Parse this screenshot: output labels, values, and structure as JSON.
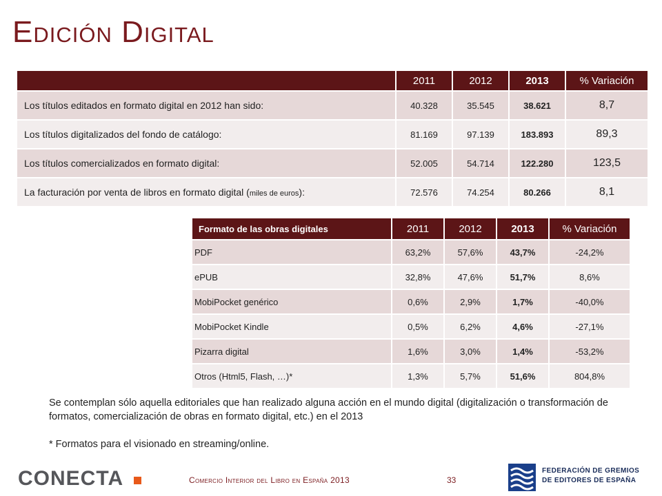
{
  "title": "Edición Digital",
  "table1": {
    "headers": [
      "",
      "2011",
      "2012",
      "2013",
      "% Variación"
    ],
    "rows": [
      {
        "label": "Los títulos editados en formato digital en 2012 han sido:",
        "label_small": "",
        "label_end": "",
        "v2011": "40.328",
        "v2012": "35.545",
        "v2013": "38.621",
        "var": "8,7"
      },
      {
        "label": "Los títulos digitalizados del fondo de catálogo:",
        "label_small": "",
        "label_end": "",
        "v2011": "81.169",
        "v2012": "97.139",
        "v2013": "183.893",
        "var": "89,3"
      },
      {
        "label": "Los títulos comercializados en formato digital:",
        "label_small": "",
        "label_end": "",
        "v2011": "52.005",
        "v2012": "54.714",
        "v2013": "122.280",
        "var": "123,5"
      },
      {
        "label": "La facturación por venta de libros en formato digital (",
        "label_small": "miles de euros",
        "label_end": "):",
        "v2011": "72.576",
        "v2012": "74.254",
        "v2013": "80.266",
        "var": "8,1"
      }
    ]
  },
  "table2": {
    "headers": [
      "Formato de las obras digitales",
      "2011",
      "2012",
      "2013",
      "% Variación"
    ],
    "rows": [
      {
        "label": "PDF",
        "v2011": "63,2%",
        "v2012": "57,6%",
        "v2013": "43,7%",
        "var": "-24,2%"
      },
      {
        "label": "ePUB",
        "v2011": "32,8%",
        "v2012": "47,6%",
        "v2013": "51,7%",
        "var": "8,6%"
      },
      {
        "label": "MobiPocket genérico",
        "v2011": "0,6%",
        "v2012": "2,9%",
        "v2013": "1,7%",
        "var": "-40,0%"
      },
      {
        "label": "MobiPocket Kindle",
        "v2011": "0,5%",
        "v2012": "6,2%",
        "v2013": "4,6%",
        "var": "-27,1%"
      },
      {
        "label": "Pizarra digital",
        "v2011": "1,6%",
        "v2012": "3,0%",
        "v2013": "1,4%",
        "var": "-53,2%"
      },
      {
        "label": "Otros (Html5, Flash, …)*",
        "v2011": "1,3%",
        "v2012": "5,7%",
        "v2013": "51,6%",
        "var": "804,8%"
      }
    ]
  },
  "notes": {
    "line1": "Se contemplan sólo aquella editoriales que han realizado alguna acción en el mundo digital (digitalización o transformación de formatos, comercialización de obras en formato digital, etc.) en el 2013",
    "line2": "* Formatos para el visionado en streaming/online."
  },
  "footer": {
    "logo_text": "CONECTA",
    "subtitle": "Comercio Interior del Libro en España 2013",
    "page_number": "33",
    "federation_line1": "FEDERACIÓN DE GREMIOS",
    "federation_line2": "DE EDITORES DE ESPAÑA"
  },
  "colors": {
    "accent": "#5c1517",
    "row_dark": "#e6d8d8",
    "row_light": "#f2eded",
    "title": "#7a1a1e",
    "logo_orange": "#e8591a",
    "fed_blue": "#1a3f8a"
  }
}
